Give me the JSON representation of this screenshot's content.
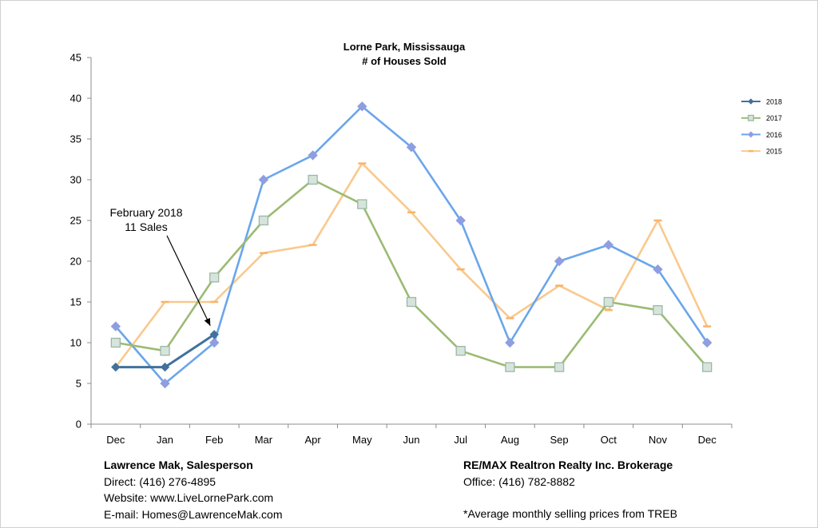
{
  "chart_data": {
    "type": "line",
    "title": [
      "Lorne Park, Mississauga",
      "# of Houses Sold"
    ],
    "categories": [
      "Dec",
      "Jan",
      "Feb",
      "Mar",
      "Apr",
      "May",
      "Jun",
      "Jul",
      "Aug",
      "Sep",
      "Oct",
      "Nov",
      "Dec"
    ],
    "ylim": [
      0,
      45
    ],
    "yticks": [
      0,
      5,
      10,
      15,
      20,
      25,
      30,
      35,
      40,
      45
    ],
    "grid": false,
    "legend_position": "right",
    "series": [
      {
        "name": "2018",
        "color": "#41719c",
        "marker": "diamond",
        "values": [
          7,
          7,
          11,
          null,
          null,
          null,
          null,
          null,
          null,
          null,
          null,
          null,
          null
        ]
      },
      {
        "name": "2017",
        "color": "#9bbb73",
        "marker": "square",
        "values": [
          10,
          9,
          18,
          25,
          30,
          27,
          15,
          9,
          7,
          7,
          15,
          14,
          7
        ]
      },
      {
        "name": "2016",
        "color": "#6aa6ea",
        "marker": "diamond",
        "values": [
          12,
          5,
          10,
          30,
          33,
          39,
          34,
          25,
          10,
          20,
          22,
          19,
          10
        ]
      },
      {
        "name": "2015",
        "color": "#f9c98d",
        "marker": "dash",
        "values": [
          7,
          15,
          15,
          21,
          22,
          32,
          26,
          19,
          13,
          17,
          14,
          25,
          12
        ]
      }
    ],
    "annotation": {
      "lines": [
        "February 2018",
        "11 Sales"
      ],
      "target_category_index": 2,
      "target_value": 11
    }
  },
  "footer": {
    "left": {
      "name": "Lawrence Mak, Salesperson",
      "direct": "Direct:  (416) 276-4895",
      "website": "Website:  www.LiveLornePark.com",
      "email": "E-mail:  Homes@LawrenceMak.com"
    },
    "right": {
      "brokerage": "RE/MAX Realtron Realty Inc. Brokerage",
      "office": "Office: (416) 782-8882",
      "note": "*Average monthly selling prices from TREB"
    }
  }
}
